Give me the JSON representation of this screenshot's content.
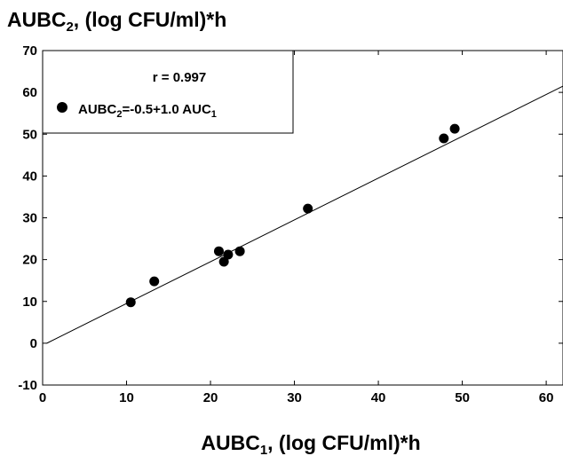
{
  "chart_data": {
    "type": "scatter",
    "ytitle": {
      "main": "AUBC",
      "sub": "2",
      "rest": ", (log CFU/ml)*h"
    },
    "xtitle": {
      "main": "AUBC",
      "sub": "1",
      "rest": ", (log CFU/ml)*h"
    },
    "xlim": [
      0,
      62
    ],
    "ylim": [
      -10,
      70
    ],
    "xticks": [
      "0",
      "10",
      "20",
      "30",
      "40",
      "50",
      "60"
    ],
    "yticks": [
      "-10",
      "0",
      "10",
      "20",
      "30",
      "40",
      "50",
      "60",
      "70"
    ],
    "series": [
      {
        "points": [
          [
            10.5,
            9.8
          ],
          [
            13.3,
            14.8
          ],
          [
            21.0,
            22.0
          ],
          [
            21.6,
            19.5
          ],
          [
            22.1,
            21.2
          ],
          [
            23.5,
            22.0
          ],
          [
            31.6,
            32.2
          ],
          [
            47.8,
            49.0
          ],
          [
            49.1,
            51.3
          ]
        ]
      }
    ],
    "fit": {
      "intercept": -0.5,
      "slope": 1.0
    },
    "legend": {
      "r_text": "r  =  0.997",
      "eq_part1": "AUBC",
      "eq_sub1": "2",
      "eq_part2": "=-0.5+1.0 AUC",
      "eq_sub2": "1"
    },
    "grid": false,
    "legend_position": "top-left"
  }
}
